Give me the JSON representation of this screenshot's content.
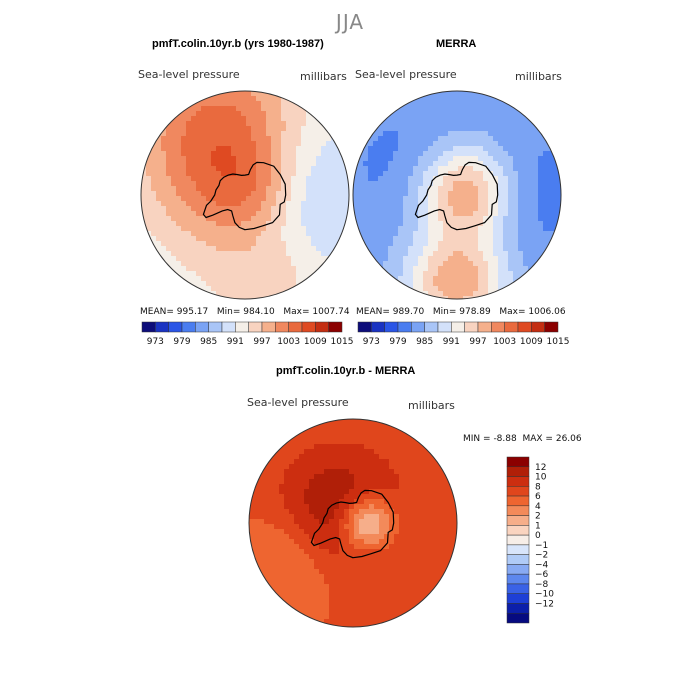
{
  "figure": {
    "season": "JJA"
  },
  "chart_data": [
    {
      "type": "heatmap",
      "title": "pmfT.colin.10yr.b (yrs 1980-1987)",
      "variable": "Sea-level pressure",
      "units": "millibars",
      "projection": "south polar stereographic",
      "stats": {
        "mean": "995.17",
        "min": "984.10",
        "max": "1007.74"
      },
      "stats_labels": {
        "mean": "MEAN=",
        "min": "Min=",
        "max": "Max="
      },
      "colorbar_ticks": [
        "973",
        "979",
        "985",
        "991",
        "997",
        "1003",
        "1009",
        "1015"
      ],
      "colorbar_colors": [
        "#0d0d7a",
        "#1a33c2",
        "#2a55e6",
        "#4a7df0",
        "#7aa3f4",
        "#a9c5f7",
        "#d3e1fa",
        "#f5efe8",
        "#f8d3c0",
        "#f5b08c",
        "#f0885f",
        "#e96a3e",
        "#df4a22",
        "#c42e12",
        "#8b0000"
      ],
      "field": {
        "base": 993,
        "blobs": [
          {
            "lon": 270,
            "lat": -78,
            "amp": 8,
            "width": 28
          },
          {
            "lon": 200,
            "lat": -45,
            "amp": 11,
            "width": 30
          },
          {
            "lon": 80,
            "lat": -60,
            "amp": -6,
            "width": 30
          },
          {
            "lon": 20,
            "lat": -42,
            "amp": 5,
            "width": 22
          },
          {
            "lon": 120,
            "lat": -82,
            "amp": 5,
            "width": 18
          }
        ]
      }
    },
    {
      "type": "heatmap",
      "title": "MERRA",
      "variable": "Sea-level pressure",
      "units": "millibars",
      "projection": "south polar stereographic",
      "stats": {
        "mean": "989.70",
        "min": "978.89",
        "max": "1006.06"
      },
      "stats_labels": {
        "mean": "MEAN=",
        "min": "Min=",
        "max": "Max="
      },
      "colorbar_ticks": [
        "973",
        "979",
        "985",
        "991",
        "997",
        "1003",
        "1009",
        "1015"
      ],
      "colorbar_colors": [
        "#0d0d7a",
        "#1a33c2",
        "#2a55e6",
        "#4a7df0",
        "#7aa3f4",
        "#a9c5f7",
        "#d3e1fa",
        "#f5efe8",
        "#f8d3c0",
        "#f5b08c",
        "#f0885f",
        "#e96a3e",
        "#df4a22",
        "#c42e12",
        "#8b0000"
      ],
      "field": {
        "base": 985,
        "blobs": [
          {
            "lon": 100,
            "lat": -85,
            "amp": 18,
            "width": 20
          },
          {
            "lon": 0,
            "lat": -40,
            "amp": 16,
            "width": 18
          },
          {
            "lon": 90,
            "lat": -55,
            "amp": -4,
            "width": 25
          },
          {
            "lon": 240,
            "lat": -60,
            "amp": -3,
            "width": 25
          }
        ]
      }
    },
    {
      "type": "heatmap",
      "title": "pmfT.colin.10yr.b - MERRA",
      "variable": "Sea-level pressure",
      "units": "millibars",
      "projection": "south polar stereographic",
      "stats": {
        "min": "-8.88",
        "max": "26.06"
      },
      "stats_labels": {
        "min": "MIN =",
        "max": "MAX ="
      },
      "colorbar_ticks": [
        "12",
        "10",
        "8",
        "6",
        "4",
        "2",
        "1",
        "0",
        "−1",
        "−2",
        "−4",
        "−6",
        "−8",
        "−10",
        "−12"
      ],
      "colorbar_colors": [
        "#8b0000",
        "#b01f08",
        "#cc2e10",
        "#e0461c",
        "#ee6530",
        "#f38a5a",
        "#f6ae8a",
        "#fad4c0",
        "#f7eee8",
        "#d8e5fb",
        "#b0cbf7",
        "#88aaf3",
        "#5d87ee",
        "#3a62e6",
        "#1e3fd6",
        "#0c1faa",
        "#060a80"
      ],
      "field": {
        "base": 7,
        "blobs": [
          {
            "lon": 240,
            "lat": -80,
            "amp": 5,
            "width": 25
          },
          {
            "lon": 90,
            "lat": -82,
            "amp": -8,
            "width": 11
          },
          {
            "lon": 300,
            "lat": -50,
            "amp": -3,
            "width": 20
          }
        ]
      }
    }
  ]
}
